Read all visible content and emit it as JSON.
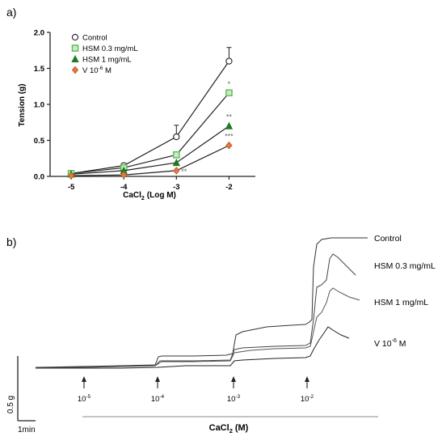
{
  "panel_a_label": "a)",
  "panel_b_label": "b)",
  "chart_data": [
    {
      "type": "line",
      "panel": "a)",
      "xlabel_main": "CaCl",
      "xlabel_sub": "2",
      "xlabel_tail": "(Log M)",
      "ylabel": "Tension (g)",
      "x": [
        -5,
        -4,
        -3,
        -2
      ],
      "xticks": [
        "-5",
        "-4",
        "-3",
        "-2"
      ],
      "yticks": [
        "0.0",
        "0.5",
        "1.0",
        "1.5",
        "2.0"
      ],
      "xlim": [
        -5.4,
        -1.5
      ],
      "ylim": [
        0,
        2.0
      ],
      "grid": false,
      "legend_position": "top-left",
      "series": [
        {
          "name": "Control",
          "values": [
            0.04,
            0.15,
            0.55,
            1.6
          ],
          "err": [
            0,
            0,
            0.16,
            0.19
          ],
          "marker": "circle-open",
          "color": "#222222",
          "stars": [
            "",
            "",
            "",
            ""
          ]
        },
        {
          "name": "HSM 0.3 mg/mL",
          "values": [
            0.04,
            0.12,
            0.3,
            1.16
          ],
          "err": [
            0,
            0,
            0,
            0
          ],
          "marker": "square",
          "color": "#5fb85a",
          "stars": [
            "",
            "",
            "",
            "*"
          ]
        },
        {
          "name": "HSM 1 mg/mL",
          "values": [
            0.03,
            0.08,
            0.19,
            0.7
          ],
          "err": [
            0,
            0,
            0,
            0
          ],
          "marker": "triangle",
          "color": "#1e7a22",
          "stars": [
            "",
            "",
            "",
            "**"
          ]
        },
        {
          "name": "V 10",
          "name_sup": "-6",
          "name_tail": " M",
          "values": [
            0.01,
            0.02,
            0.08,
            0.43
          ],
          "err": [
            0,
            0,
            0,
            0
          ],
          "marker": "diamond",
          "color": "#e8773a",
          "stars": [
            "",
            "",
            "**",
            "***"
          ]
        }
      ]
    },
    {
      "type": "line",
      "panel": "b)",
      "xlabel_main": "CaCl",
      "xlabel_sub": "2",
      "xlabel_tail": "(M)",
      "scale_bar_y": "0.5 g",
      "scale_bar_x": "1min",
      "additions": [
        {
          "base": "10",
          "exp": "-5"
        },
        {
          "base": "10",
          "exp": "-4"
        },
        {
          "base": "10",
          "exp": "-3"
        },
        {
          "base": "10",
          "exp": "-2"
        }
      ],
      "traces": [
        {
          "name": "Control",
          "sup": "",
          "tail": ""
        },
        {
          "name": "HSM 0.3 mg/mL",
          "sup": "",
          "tail": ""
        },
        {
          "name": "HSM 1 mg/mL",
          "sup": "",
          "tail": ""
        },
        {
          "name": "V 10",
          "sup": "-6",
          "tail": " M"
        }
      ]
    }
  ]
}
